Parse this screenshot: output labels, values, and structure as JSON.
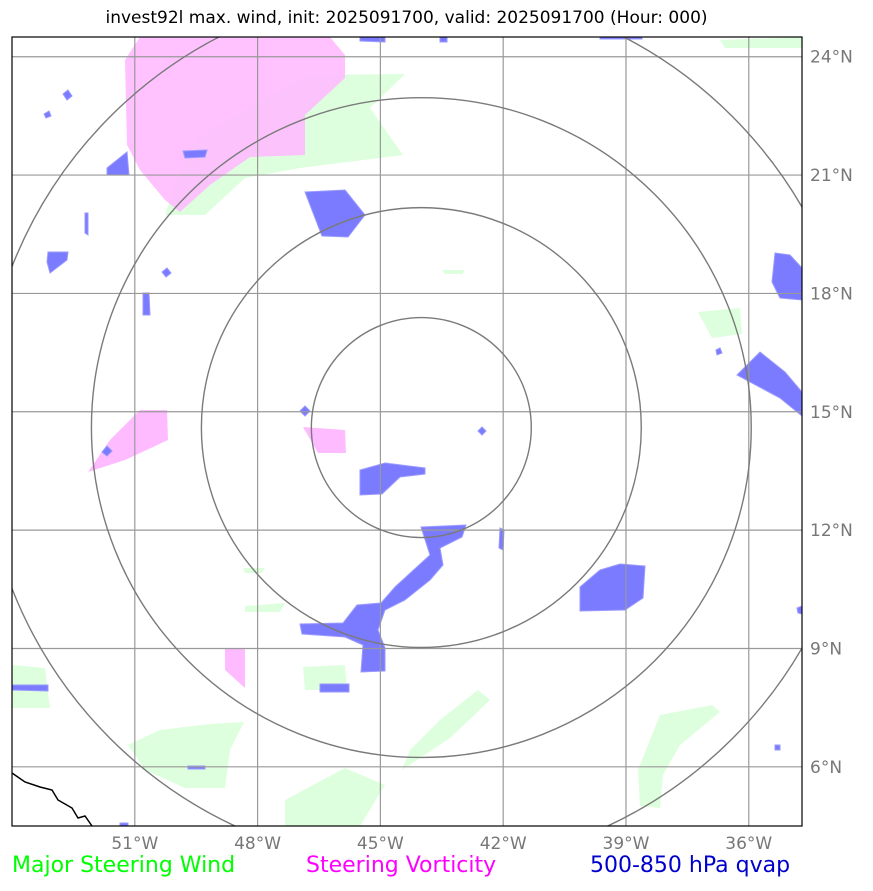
{
  "title": "invest92l max. wind, init: 2025091700, valid: 2025091700 (Hour: 000)",
  "map": {
    "lon_range": [
      -54,
      -34.7
    ],
    "lat_range": [
      4.5,
      24.5
    ],
    "center": {
      "lon": -44,
      "lat": 14.6
    },
    "range_rings": 4,
    "lon_ticks": [
      {
        "value": -51,
        "label": "51°W"
      },
      {
        "value": -48,
        "label": "48°W"
      },
      {
        "value": -45,
        "label": "45°W"
      },
      {
        "value": -42,
        "label": "42°W"
      },
      {
        "value": -39,
        "label": "39°W"
      },
      {
        "value": -36,
        "label": "36°W"
      }
    ],
    "lat_ticks": [
      {
        "value": 6,
        "label": "6°N"
      },
      {
        "value": 9,
        "label": "9°N"
      },
      {
        "value": 12,
        "label": "12°N"
      },
      {
        "value": 15,
        "label": "15°N"
      },
      {
        "value": 18,
        "label": "18°N"
      },
      {
        "value": 21,
        "label": "21°N"
      },
      {
        "value": 24,
        "label": "24°N"
      }
    ]
  },
  "legend": {
    "wind": {
      "label": "Major Steering Wind",
      "color": "#00ff00"
    },
    "vorticity": {
      "label": "Steering Vorticity",
      "color": "#ff00ff"
    },
    "qvap": {
      "label": "500-850 hPa qvap",
      "color": "#0000cc"
    }
  },
  "colors": {
    "wind_fill": "#ddffdd",
    "vorticity_fill": "#ffbbff",
    "qvap_fill": "#7b7bff",
    "grid": "#999999",
    "ring": "#7a7a7a",
    "tick_label": "#777777"
  }
}
